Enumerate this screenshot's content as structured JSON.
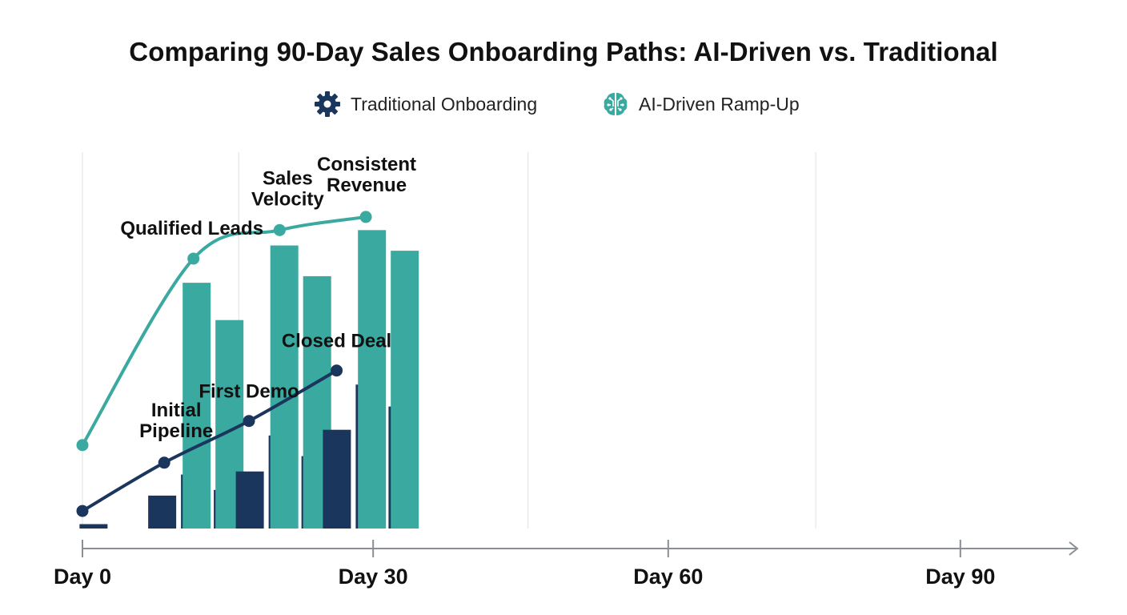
{
  "chart_data": {
    "type": "line",
    "title": "Comparing 90-Day Sales Onboarding Paths: AI-Driven vs. Traditional",
    "xlabel": "",
    "ylabel": "",
    "x_ticks": [
      "Day 0",
      "Day 30",
      "Day 60",
      "Day 90"
    ],
    "xlim": [
      0,
      100
    ],
    "grid": true,
    "legend_position": "top-center",
    "colors": {
      "traditional": "#1b365d",
      "ai": "#3aa9a0",
      "axis": "#8a8f96",
      "grid": "#e3e6ea"
    },
    "legend": [
      {
        "label": "Traditional Onboarding",
        "icon": "gear-icon",
        "color": "#1b365d"
      },
      {
        "label": "AI-Driven Ramp-Up",
        "icon": "brain-circuit-icon",
        "color": "#3aa9a0"
      }
    ],
    "series": [
      {
        "name": "Traditional Onboarding",
        "color": "#1b365d",
        "points": [
          {
            "x": 0,
            "y": 4,
            "label": ""
          },
          {
            "x": 28,
            "y": 15,
            "label": "Initial Pipeline"
          },
          {
            "x": 57,
            "y": 24.5,
            "label": "First Demo"
          },
          {
            "x": 87,
            "y": 36,
            "label": "Closed Deal"
          }
        ]
      },
      {
        "name": "AI-Driven Ramp-Up",
        "color": "#3aa9a0",
        "points": [
          {
            "x": 0,
            "y": 19,
            "label": ""
          },
          {
            "x": 38,
            "y": 61.5,
            "label": "Qualified Leads"
          },
          {
            "x": 67.5,
            "y": 68,
            "label": "Sales Velocity"
          },
          {
            "x": 97,
            "y": 71,
            "label": "Consistent Revenue"
          }
        ]
      }
    ],
    "bar_groups": [
      {
        "series": "Traditional Onboarding",
        "x_start": -1,
        "values": [
          1
        ]
      },
      {
        "series": "Traditional Onboarding",
        "x_start": 22.5,
        "values": [
          7.5,
          12.3,
          8.8
        ]
      },
      {
        "series": "AI-Driven Ramp-Up",
        "x_start": 34.3,
        "values": [
          56,
          47.5
        ]
      },
      {
        "series": "Traditional Onboarding",
        "x_start": 52.5,
        "values": [
          13,
          21.2,
          16.5
        ]
      },
      {
        "series": "AI-Driven Ramp-Up",
        "x_start": 64.3,
        "values": [
          64.5,
          57.5
        ]
      },
      {
        "series": "Traditional Onboarding",
        "x_start": 82.3,
        "values": [
          22.5,
          32.8,
          27.8
        ]
      },
      {
        "series": "AI-Driven Ramp-Up",
        "x_start": 94.3,
        "values": [
          68,
          63.3
        ]
      }
    ]
  }
}
